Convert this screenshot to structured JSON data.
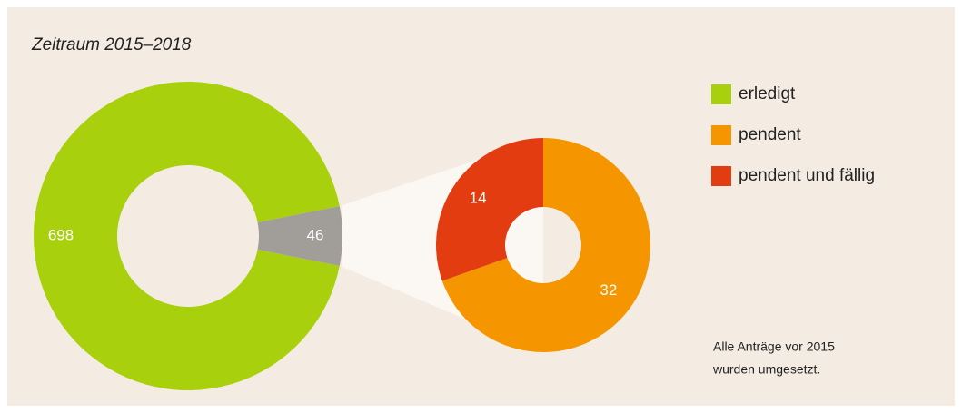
{
  "title": "Zeitraum 2015–2018",
  "note": [
    "Alle Anträge vor 2015",
    "wurden umgesetzt."
  ],
  "chart_data": [
    {
      "type": "donut",
      "categories": [
        "erledigt",
        null
      ],
      "values": [
        698,
        46
      ],
      "colors": [
        "#a8d00c",
        "#a19d99"
      ]
    },
    {
      "type": "donut",
      "categories": [
        "pendent",
        "pendent und fällig"
      ],
      "values": [
        32,
        14
      ],
      "colors": [
        "#f59500",
        "#e33c10"
      ]
    }
  ]
}
